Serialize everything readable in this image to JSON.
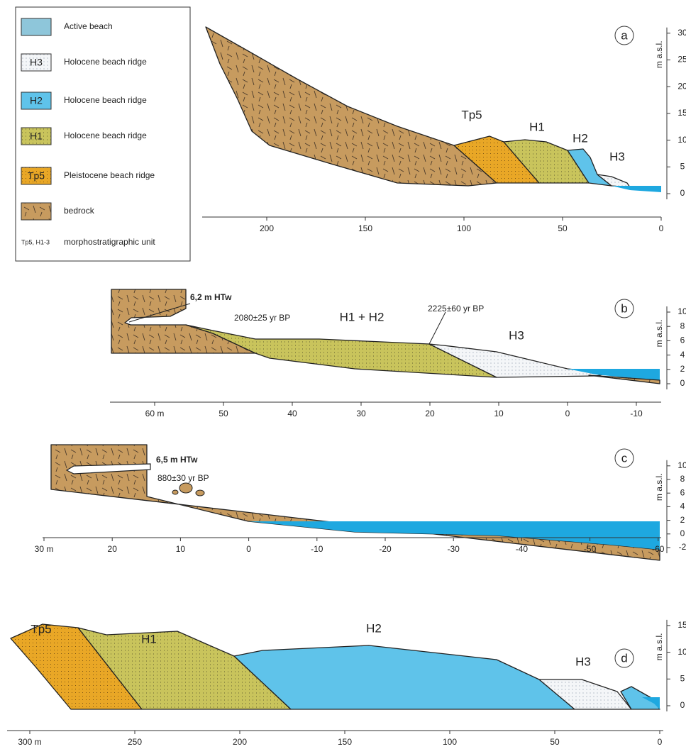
{
  "legend": {
    "items": [
      {
        "label": "Active beach"
      },
      {
        "symbol": "H3",
        "label": "Holocene beach ridge"
      },
      {
        "symbol": "H2",
        "label": "Holocene beach ridge"
      },
      {
        "symbol": "H1",
        "label": "Holocene beach ridge"
      },
      {
        "symbol": "Tp5",
        "label": "Pleistocene beach ridge"
      },
      {
        "label": "bedrock"
      }
    ],
    "note_symbol": "Tp5, H1-3",
    "note": "morphostratigraphic unit"
  },
  "panels": [
    {
      "letter": "a",
      "y_axis_label": "m a.s.l.",
      "x_ticks": [
        "200",
        "150",
        "100",
        "50",
        "0"
      ],
      "y_ticks": [
        "0",
        "5",
        "10",
        "15",
        "20",
        "25",
        "30"
      ],
      "labels": [
        "Tp5",
        "H1",
        "H2",
        "H3"
      ]
    },
    {
      "letter": "b",
      "y_axis_label": "m a.s.l.",
      "x_ticks": [
        "60 m",
        "50",
        "40",
        "30",
        "20",
        "10",
        "0",
        "-10"
      ],
      "y_ticks": [
        "0",
        "2",
        "4",
        "6",
        "8",
        "10"
      ],
      "labels": [
        "6,2 m HTw",
        "2080±25 yr BP",
        "H1 + H2",
        "2225±60 yr BP",
        "H3"
      ]
    },
    {
      "letter": "c",
      "y_axis_label": "m a.s.l.",
      "x_ticks": [
        "30 m",
        "20",
        "10",
        "0",
        "-10",
        "-20",
        "-30",
        "-40",
        "-50",
        "-60"
      ],
      "y_ticks": [
        "-2",
        "0",
        "2",
        "4",
        "6",
        "8",
        "10"
      ],
      "labels": [
        "6,5 m HTw",
        "880±30 yr BP"
      ]
    },
    {
      "letter": "d",
      "y_axis_label": "m a.s.l.",
      "x_ticks": [
        "300 m",
        "250",
        "200",
        "150",
        "100",
        "50",
        "0"
      ],
      "y_ticks": [
        "0",
        "5",
        "10",
        "15"
      ],
      "labels": [
        "Tp5",
        "H1",
        "H2",
        "H3"
      ]
    }
  ]
}
